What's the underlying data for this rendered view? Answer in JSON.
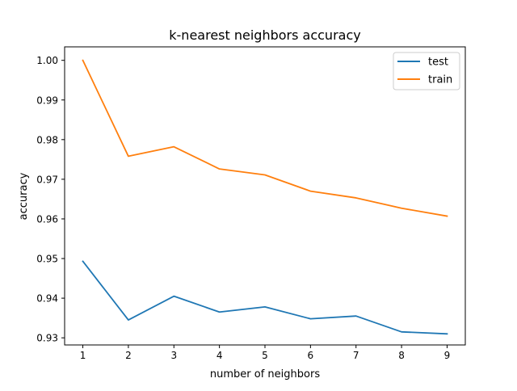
{
  "chart_data": {
    "type": "line",
    "title": "k-nearest neighbors accuracy",
    "xlabel": "number of neighbors",
    "ylabel": "accuracy",
    "x": [
      1,
      2,
      3,
      4,
      5,
      6,
      7,
      8,
      9
    ],
    "xlim": [
      0.6,
      9.4
    ],
    "ylim": [
      0.9282,
      1.0034
    ],
    "xticks": [
      1,
      2,
      3,
      4,
      5,
      6,
      7,
      8,
      9
    ],
    "xtick_labels": [
      "1",
      "2",
      "3",
      "4",
      "5",
      "6",
      "7",
      "8",
      "9"
    ],
    "yticks": [
      0.93,
      0.94,
      0.95,
      0.96,
      0.97,
      0.98,
      0.99,
      1.0
    ],
    "ytick_labels": [
      "0.93",
      "0.94",
      "0.95",
      "0.96",
      "0.97",
      "0.98",
      "0.99",
      "1.00"
    ],
    "grid": false,
    "legend_position": "top-right",
    "series": [
      {
        "name": "test",
        "color": "#1f77b4",
        "values": [
          0.9493,
          0.9345,
          0.9405,
          0.9365,
          0.9378,
          0.9348,
          0.9355,
          0.9315,
          0.931
        ]
      },
      {
        "name": "train",
        "color": "#ff7f0e",
        "values": [
          1.0,
          0.9758,
          0.9782,
          0.9726,
          0.9711,
          0.967,
          0.9653,
          0.9627,
          0.9607
        ]
      }
    ]
  }
}
